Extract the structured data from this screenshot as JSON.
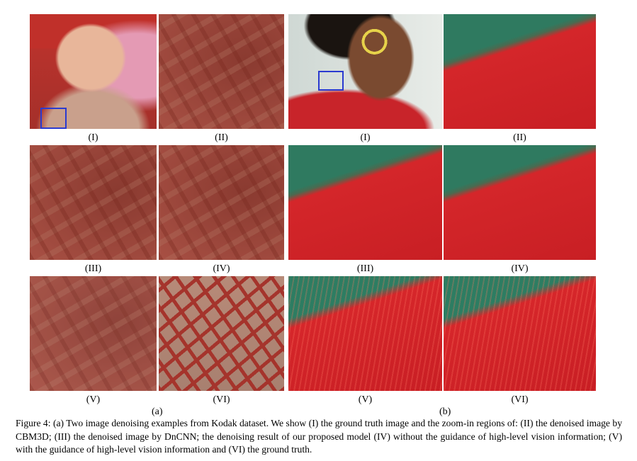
{
  "panels": [
    {
      "label": "(a)",
      "images": [
        {
          "label": "(I)"
        },
        {
          "label": "(II)"
        },
        {
          "label": "(III)"
        },
        {
          "label": "(IV)"
        },
        {
          "label": "(V)"
        },
        {
          "label": "(VI)"
        }
      ]
    },
    {
      "label": "(b)",
      "images": [
        {
          "label": "(I)"
        },
        {
          "label": "(II)"
        },
        {
          "label": "(III)"
        },
        {
          "label": "(IV)"
        },
        {
          "label": "(V)"
        },
        {
          "label": "(VI)"
        }
      ]
    }
  ],
  "caption": "Figure 4: (a) Two image denoising examples from Kodak dataset. We show (I) the ground truth image and the zoom-in regions of: (II) the denoised image by CBM3D; (III) the denoised image by DnCNN; the denoising result of our proposed model (IV) without the guidance of high-level vision information; (V) with the guidance of high-level vision information and (VI) the ground truth."
}
